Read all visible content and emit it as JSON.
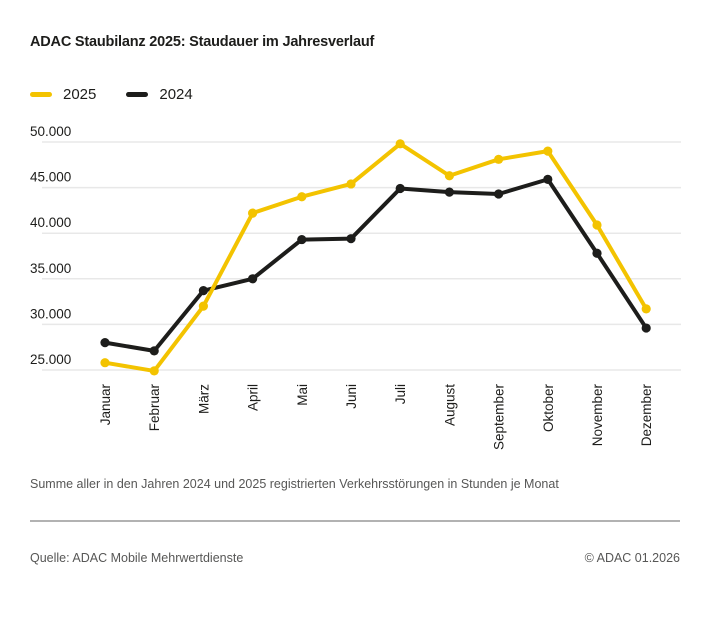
{
  "title": "ADAC Staubilanz 2025: Staudauer im Jahresverlauf",
  "legend": [
    {
      "label": "2025",
      "color": "#f3c300"
    },
    {
      "label": "2024",
      "color": "#1d1d1b"
    }
  ],
  "chart_data": {
    "type": "line",
    "title": "ADAC Staubilanz 2025: Staudauer im Jahresverlauf",
    "categories": [
      "Januar",
      "Februar",
      "März",
      "April",
      "Mai",
      "Juni",
      "Juli",
      "August",
      "September",
      "Oktober",
      "November",
      "Dezember"
    ],
    "series": [
      {
        "name": "2025",
        "color": "#f3c300",
        "values": [
          25800,
          24900,
          32000,
          42200,
          44000,
          45400,
          49800,
          46300,
          48100,
          49000,
          40900,
          31700
        ]
      },
      {
        "name": "2024",
        "color": "#1d1d1b",
        "values": [
          28000,
          27100,
          33700,
          35000,
          39300,
          39400,
          44900,
          44500,
          44300,
          45900,
          37800,
          29600
        ]
      }
    ],
    "yticks": [
      {
        "value": 50000,
        "label": "50.000"
      },
      {
        "value": 45000,
        "label": "45.000"
      },
      {
        "value": 40000,
        "label": "40.000"
      },
      {
        "value": 35000,
        "label": "35.000"
      },
      {
        "value": 30000,
        "label": "30.000"
      },
      {
        "value": 25000,
        "label": "25.000"
      }
    ],
    "ylim": [
      24000,
      51000
    ],
    "xlabel": "",
    "ylabel": "",
    "grid": true,
    "legend_position": "top-left",
    "gridline_color": "#e8e8e8",
    "tick_label_color": "#1d1d1b"
  },
  "footnote": "Summe aller in den Jahren 2024 und 2025 registrierten Verkehrsstörungen in Stunden je Monat",
  "footer": {
    "source": "Quelle: ADAC Mobile Mehrwertdienste",
    "copyright": "© ADAC 01.2026"
  }
}
